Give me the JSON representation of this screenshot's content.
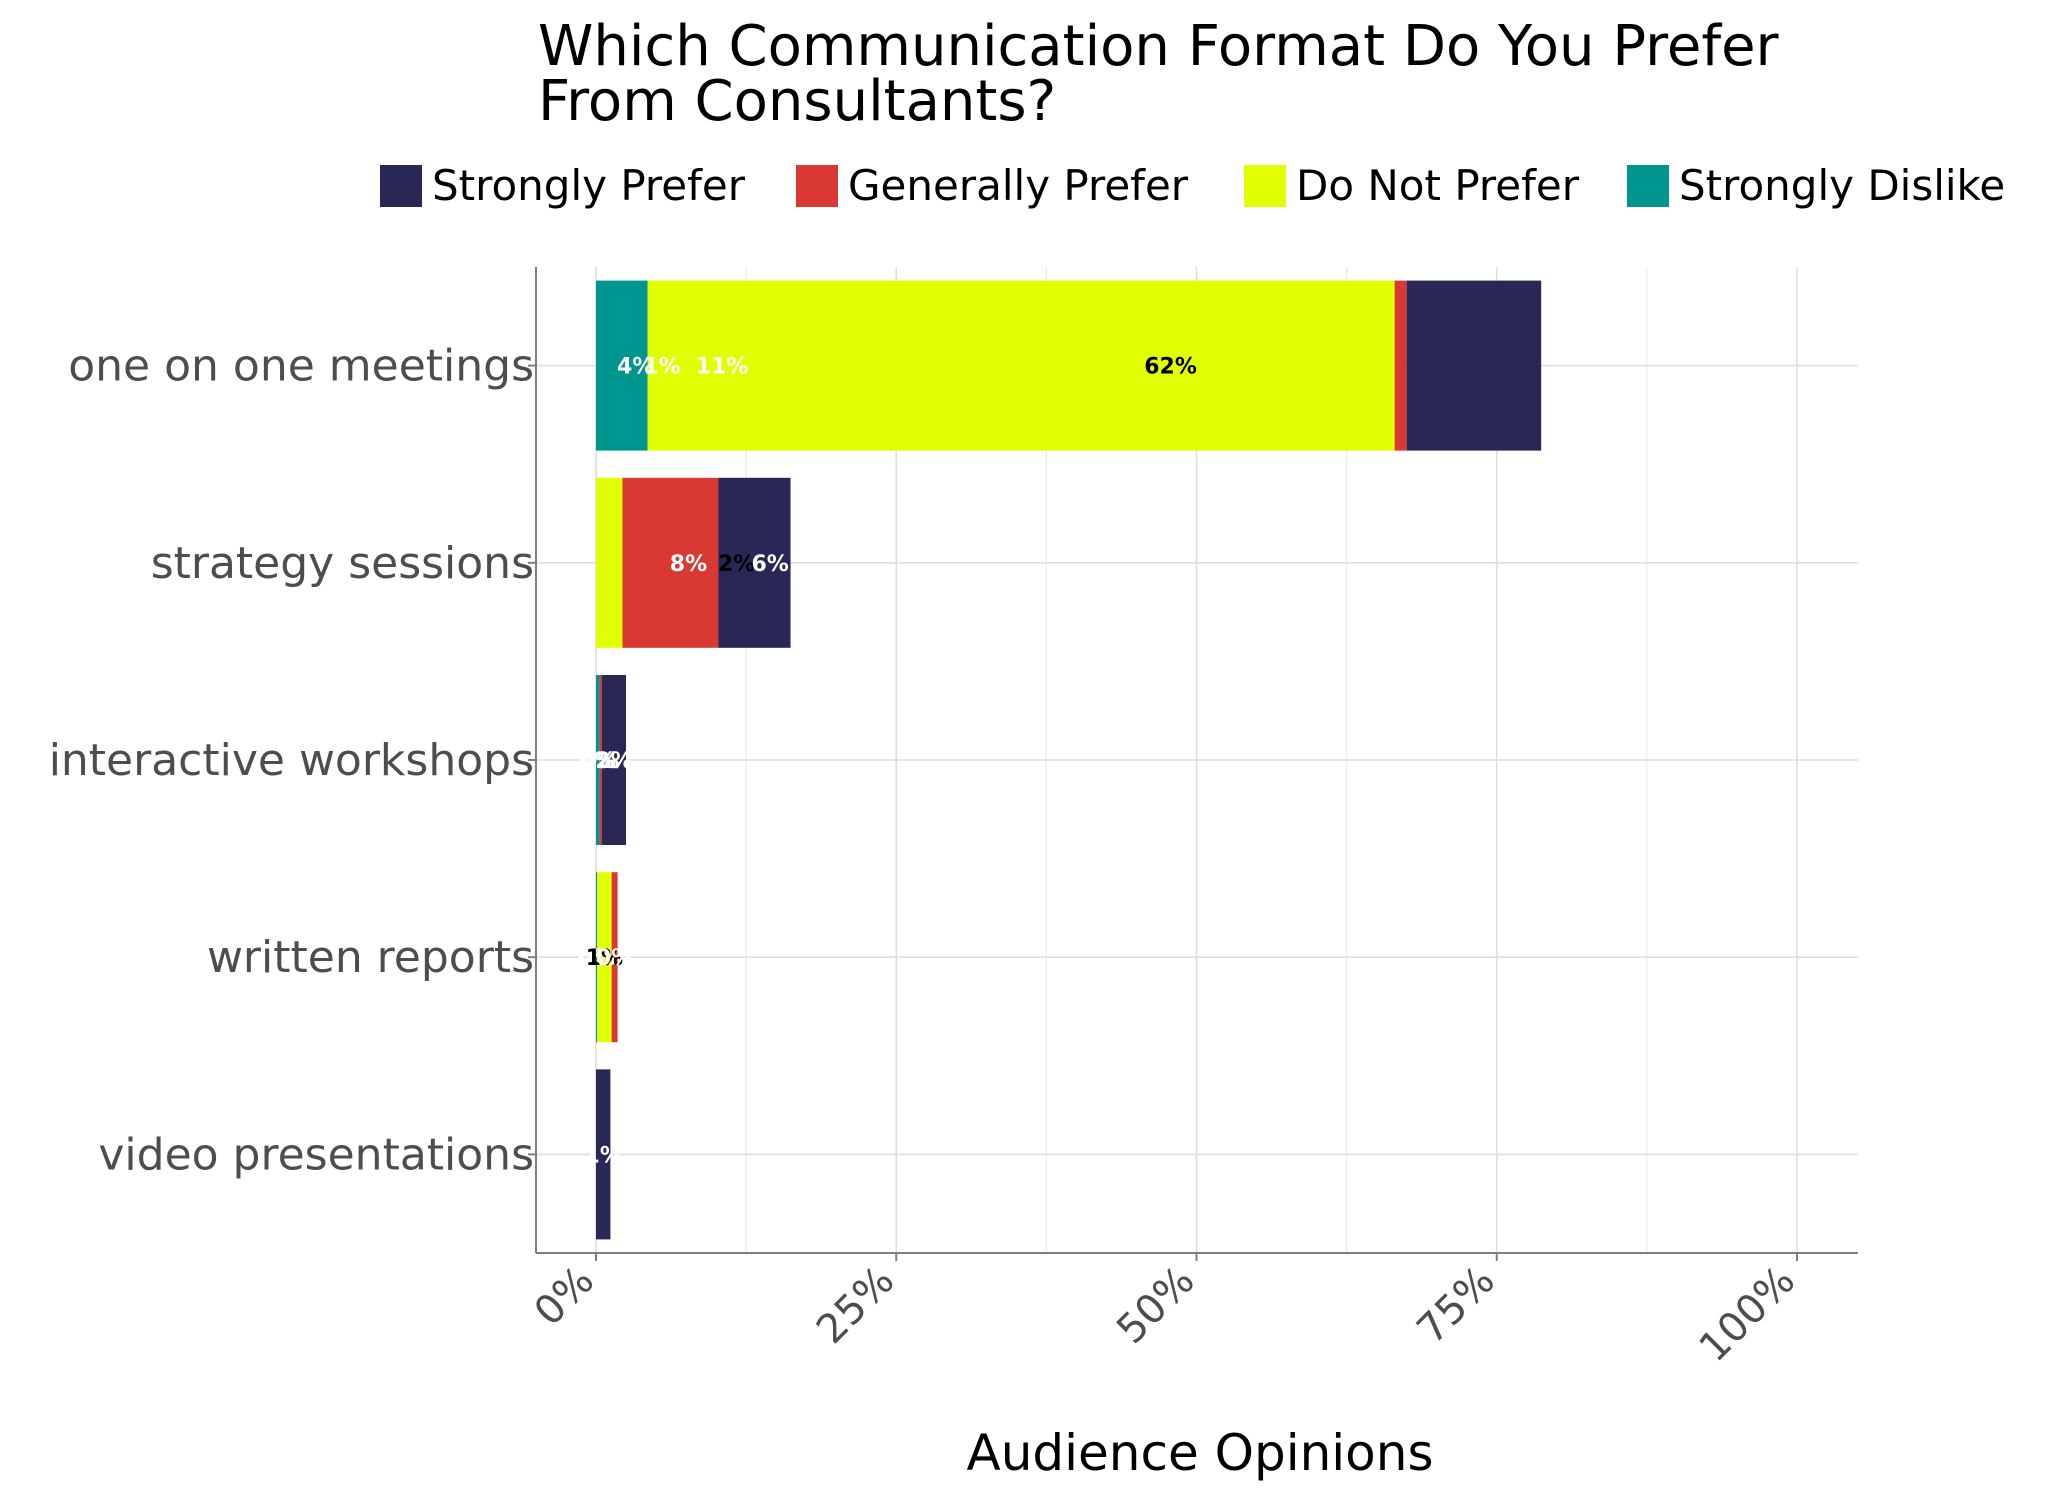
{
  "chart_data": {
    "type": "bar",
    "orientation": "horizontal",
    "stacked": true,
    "title_lines": [
      "Which Communication Format Do You Prefer",
      "From Consultants?"
    ],
    "xlabel": "Audience Opinions",
    "ylabel": "",
    "xlim": [
      0,
      105
    ],
    "x_ticks": [
      0,
      25,
      50,
      75,
      100
    ],
    "x_tick_labels": [
      "0%",
      "25%",
      "50%",
      "75%",
      "100%"
    ],
    "categories": [
      "one on one meetings",
      "strategy sessions",
      "interactive workshops",
      "written reports",
      "video presentations"
    ],
    "legend_position": "top",
    "grid": true,
    "stack_order": [
      "Strongly Dislike",
      "Do Not Prefer",
      "Generally Prefer",
      "Strongly Prefer"
    ],
    "series": [
      {
        "name": "Strongly Prefer",
        "color": "#282755",
        "label_color": "#ffffff",
        "values": [
          11.2,
          6.0,
          2.0,
          0,
          1.2
        ],
        "labels": [
          "",
          "6%",
          "2%",
          "",
          "1%"
        ]
      },
      {
        "name": "Generally Prefer",
        "color": "#da3832",
        "label_color": "#ffffff",
        "values": [
          1.0,
          8.0,
          0.2,
          0.5,
          0
        ],
        "labels": [
          "1%",
          "8%",
          "0%",
          "0%",
          ""
        ]
      },
      {
        "name": "Do Not Prefer",
        "color": "#e0ff00",
        "label_color": "#000000",
        "values": [
          62.2,
          2.2,
          0,
          1.2,
          0
        ],
        "labels": [
          "62%",
          "2%",
          "",
          "1%",
          ""
        ]
      },
      {
        "name": "Strongly Dislike",
        "color": "#009690",
        "label_color": "#ffffff",
        "values": [
          4.3,
          0,
          0.3,
          0.1,
          0
        ],
        "labels": [
          "4%",
          "",
          "0%",
          "0%",
          ""
        ]
      }
    ],
    "annotations": [
      {
        "category": "one on one meetings",
        "text": "11%",
        "color": "#ffffff",
        "x": 10.5
      }
    ]
  }
}
